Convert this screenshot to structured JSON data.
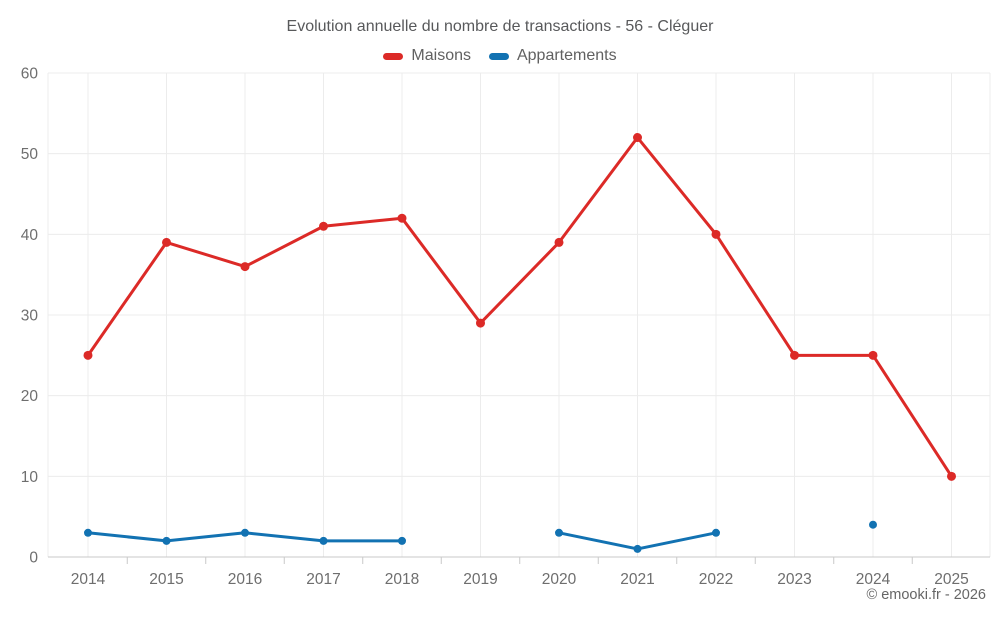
{
  "title": "Evolution annuelle du nombre de transactions - 56 - Cléguer",
  "legend": [
    {
      "label": "Maisons",
      "color": "#dc2a27"
    },
    {
      "label": "Appartements",
      "color": "#1272b2"
    }
  ],
  "footer": {
    "credit": "© emooki.fr - 2026"
  },
  "colors": {
    "maisons": "#dc2a27",
    "appartements": "#1272b2",
    "grid": "#ececec",
    "axis": "#c9c9c9",
    "tick_text": "#6e6e6e"
  },
  "chart_data": {
    "type": "line",
    "title": "Evolution annuelle du nombre de transactions - 56 - Cléguer",
    "categories": [
      "2014",
      "2015",
      "2016",
      "2017",
      "2018",
      "2019",
      "2020",
      "2021",
      "2022",
      "2023",
      "2024",
      "2025"
    ],
    "series": [
      {
        "name": "Maisons",
        "color": "#dc2a27",
        "values": [
          25,
          39,
          36,
          41,
          42,
          29,
          39,
          52,
          40,
          25,
          25,
          10
        ]
      },
      {
        "name": "Appartements",
        "color": "#1272b2",
        "values": [
          3,
          2,
          3,
          2,
          2,
          null,
          3,
          1,
          3,
          null,
          4,
          null
        ]
      }
    ],
    "xlabel": "",
    "ylabel": "",
    "ylim": [
      0,
      60
    ],
    "yticks": [
      0,
      10,
      20,
      30,
      40,
      50,
      60
    ],
    "grid": true,
    "legend_position": "top",
    "markers": true
  }
}
